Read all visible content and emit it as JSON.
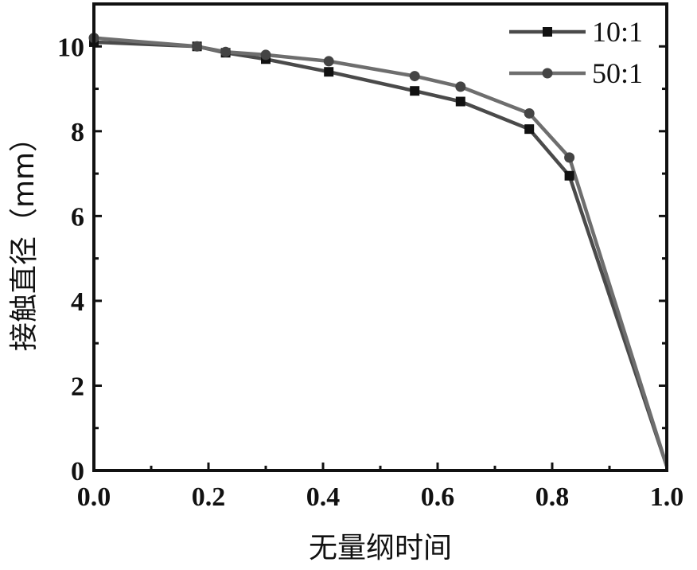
{
  "chart_data": {
    "type": "line",
    "xlabel": "无量纲时间",
    "ylabel": "接触直径（mm）",
    "xlim": [
      0.0,
      1.0
    ],
    "ylim": [
      0,
      11
    ],
    "x_ticks": [
      "0.0",
      "0.2",
      "0.4",
      "0.6",
      "0.8",
      "1.0"
    ],
    "y_ticks": [
      "0",
      "2",
      "4",
      "6",
      "8",
      "10"
    ],
    "grid": false,
    "legend_position": "top-right",
    "series": [
      {
        "name": "10:1",
        "marker": "square",
        "color": "#4a4a4a",
        "x": [
          0.0,
          0.18,
          0.23,
          0.3,
          0.41,
          0.56,
          0.64,
          0.76,
          0.83,
          1.0
        ],
        "y": [
          10.1,
          10.0,
          9.85,
          9.7,
          9.4,
          8.95,
          8.7,
          8.05,
          6.95,
          0.1
        ]
      },
      {
        "name": "50:1",
        "marker": "circle",
        "color": "#6e6e6e",
        "x": [
          0.0,
          0.18,
          0.23,
          0.3,
          0.41,
          0.56,
          0.64,
          0.76,
          0.83,
          1.0
        ],
        "y": [
          10.2,
          10.0,
          9.87,
          9.8,
          9.65,
          9.3,
          9.05,
          8.42,
          7.38,
          0.1
        ]
      }
    ]
  }
}
